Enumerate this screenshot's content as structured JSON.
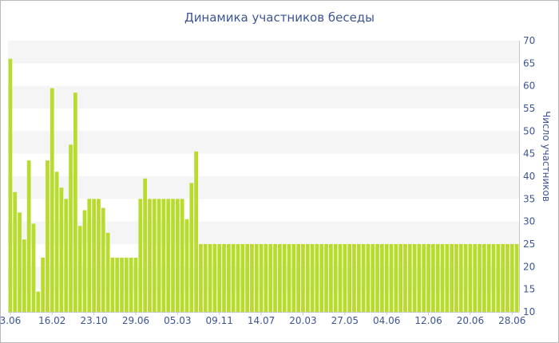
{
  "chart_data": {
    "type": "bar",
    "title": "Динамика участников беседы",
    "ylabel": "Число участников",
    "xlabel": "",
    "y_axis_side": "right",
    "ylim": [
      10,
      70
    ],
    "yticks": [
      10,
      15,
      20,
      25,
      30,
      35,
      40,
      45,
      50,
      55,
      60,
      65,
      70
    ],
    "grid": "horizontal alternating bands",
    "bar_color": "#b7dc2e",
    "band_color": "#f5f5f5",
    "text_color": "#3d5594",
    "x_tick_labels": [
      "3.06",
      "16.02",
      "23.10",
      "29.06",
      "05.03",
      "09.11",
      "14.07",
      "20.03",
      "27.05",
      "04.06",
      "12.06",
      "20.06",
      "28.06"
    ],
    "x_tick_positions": [
      0,
      9,
      18,
      27,
      36,
      45,
      54,
      63,
      72,
      81,
      90,
      99,
      108
    ],
    "values": [
      66,
      36.5,
      32,
      26,
      43.5,
      29.5,
      14.5,
      22,
      43.5,
      59.5,
      41,
      37.5,
      35,
      47,
      58.5,
      29,
      32.5,
      35,
      35,
      35,
      33,
      27.5,
      22,
      22,
      22,
      22,
      22,
      22,
      35,
      39.5,
      35,
      35,
      35,
      35,
      35,
      35,
      35,
      35,
      30.5,
      38.5,
      45.5,
      25,
      25,
      25,
      25,
      25,
      25,
      25,
      25,
      25,
      25,
      25,
      25,
      25,
      25,
      25,
      25,
      25,
      25,
      25,
      25,
      25,
      25,
      25,
      25,
      25,
      25,
      25,
      25,
      25,
      25,
      25,
      25,
      25,
      25,
      25,
      25,
      25,
      25,
      25,
      25,
      25,
      25,
      25,
      25,
      25,
      25,
      25,
      25,
      25,
      25,
      25,
      25,
      25,
      25,
      25,
      25,
      25,
      25,
      25,
      25,
      25,
      25,
      25,
      25,
      25,
      25,
      25,
      25,
      25
    ]
  }
}
